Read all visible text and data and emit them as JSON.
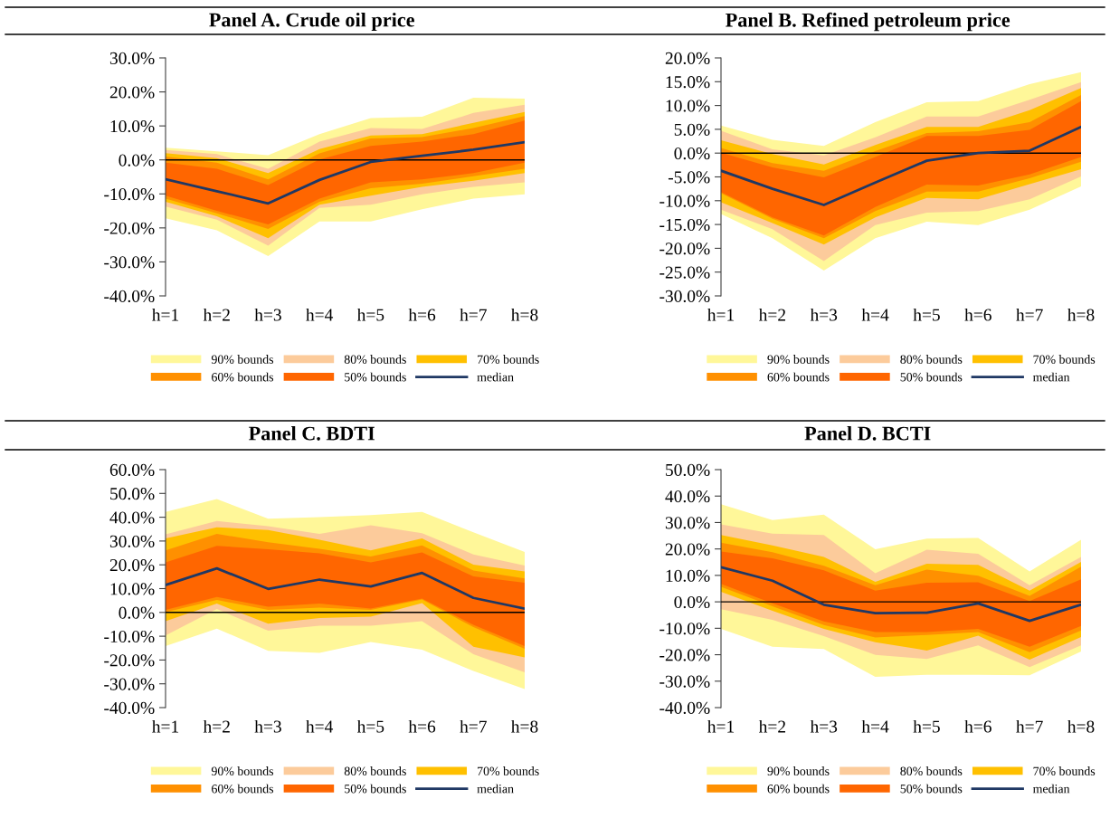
{
  "chart_data": [
    {
      "type": "area",
      "title": "Panel A. Crude oil price",
      "categories": [
        "h=1",
        "h=2",
        "h=3",
        "h=4",
        "h=5",
        "h=6",
        "h=7",
        "h=8"
      ],
      "ylim": [
        -40,
        30
      ],
      "yticks": [
        {
          "value": -40,
          "label": "-40.0%"
        },
        {
          "value": -30,
          "label": "-30.0%"
        },
        {
          "value": -20,
          "label": "-20.0%"
        },
        {
          "value": -10,
          "label": "-10.0%"
        },
        {
          "value": 0,
          "label": "0.0%"
        },
        {
          "value": 10,
          "label": "10.0%"
        },
        {
          "value": 20,
          "label": "20.0%"
        },
        {
          "value": 30,
          "label": "30.0%"
        }
      ],
      "legend": "bottom",
      "grid": false,
      "ref_lines": [
        {
          "axis": "y",
          "value": 0,
          "color": "#000000"
        }
      ],
      "series": [
        {
          "name": "90% bounds",
          "color": "#fff799",
          "values": [
            null,
            null,
            null,
            null,
            null,
            null,
            null,
            null
          ],
          "lower": [
            -17.2,
            -20.7,
            -28.3,
            -18.1,
            -18.1,
            -14.5,
            -11.4,
            -10.1
          ],
          "upper": [
            3.6,
            2.5,
            1.4,
            7.6,
            12.3,
            12.7,
            18.3,
            18.0
          ]
        },
        {
          "name": "80% bounds",
          "color": "#fccb9b",
          "values": [
            null,
            null,
            null,
            null,
            null,
            null,
            null,
            null
          ],
          "lower": [
            -13.7,
            -17.6,
            -25.2,
            -14.1,
            -13.2,
            -10.1,
            -7.9,
            -6.6
          ],
          "upper": [
            2.9,
            1.7,
            -2.6,
            5.4,
            9.4,
            9.1,
            13.8,
            16.2
          ]
        },
        {
          "name": "70% bounds",
          "color": "#ffc000",
          "values": [
            null,
            null,
            null,
            null,
            null,
            null,
            null,
            null
          ],
          "lower": [
            -12.3,
            -16.6,
            -23.0,
            -13.2,
            -10.5,
            -7.9,
            -6.1,
            -3.9
          ],
          "upper": [
            2.0,
            0.5,
            -3.9,
            3.2,
            7.2,
            7.6,
            10.9,
            14.1
          ]
        },
        {
          "name": "60% bounds",
          "color": "#ff9000",
          "values": [
            null,
            null,
            null,
            null,
            null,
            null,
            null,
            null
          ],
          "lower": [
            -11.4,
            -15.7,
            -20.3,
            -12.3,
            -8.3,
            -7.0,
            -4.8,
            -2.6
          ],
          "upper": [
            1.0,
            -0.8,
            -5.7,
            1.9,
            6.3,
            6.7,
            9.4,
            12.9
          ]
        },
        {
          "name": "50% bounds",
          "color": "#ff6600",
          "values": [
            null,
            null,
            null,
            null,
            null,
            null,
            null,
            null
          ],
          "lower": [
            -10.5,
            -15.0,
            -19.0,
            -11.4,
            -6.6,
            -5.7,
            -3.9,
            -0.8
          ],
          "upper": [
            -0.8,
            -2.6,
            -7.4,
            0.1,
            4.1,
            5.4,
            7.6,
            11.6
          ]
        },
        {
          "name": "median",
          "type": "line",
          "color": "#1f3864",
          "values": [
            -5.7,
            -9.2,
            -12.8,
            -5.9,
            -0.6,
            1.2,
            3.0,
            5.2
          ]
        }
      ]
    },
    {
      "type": "area",
      "title": "Panel B. Refined petroleum price",
      "categories": [
        "h=1",
        "h=2",
        "h=3",
        "h=4",
        "h=5",
        "h=6",
        "h=7",
        "h=8"
      ],
      "ylim": [
        -30,
        20
      ],
      "yticks": [
        {
          "value": -30,
          "label": "-30.0%"
        },
        {
          "value": -25,
          "label": "-25.0%"
        },
        {
          "value": -20,
          "label": "-20.0%"
        },
        {
          "value": -15,
          "label": "-15.0%"
        },
        {
          "value": -10,
          "label": "-10.0%"
        },
        {
          "value": -5,
          "label": "-5.0%"
        },
        {
          "value": 0,
          "label": "0.0%"
        },
        {
          "value": 5,
          "label": "5.0%"
        },
        {
          "value": 10,
          "label": "10.0%"
        },
        {
          "value": 15,
          "label": "15.0%"
        },
        {
          "value": 20,
          "label": "20.0%"
        }
      ],
      "legend": "bottom",
      "grid": false,
      "ref_lines": [
        {
          "axis": "y",
          "value": 0,
          "color": "#000000"
        }
      ],
      "series": [
        {
          "name": "90% bounds",
          "color": "#fff799",
          "values": [
            null,
            null,
            null,
            null,
            null,
            null,
            null,
            null
          ],
          "lower": [
            -12.8,
            -17.9,
            -24.7,
            -17.9,
            -14.4,
            -15.1,
            -11.9,
            -7.0
          ],
          "upper": [
            5.8,
            2.8,
            1.5,
            6.5,
            10.7,
            10.9,
            14.5,
            17.0
          ]
        },
        {
          "name": "80% bounds",
          "color": "#fccb9b",
          "values": [
            null,
            null,
            null,
            null,
            null,
            null,
            null,
            null
          ],
          "lower": [
            -11.9,
            -16.0,
            -22.7,
            -15.1,
            -12.5,
            -12.2,
            -9.7,
            -4.9
          ],
          "upper": [
            4.7,
            0.8,
            -0.5,
            3.3,
            7.7,
            7.7,
            11.2,
            14.9
          ]
        },
        {
          "name": "70% bounds",
          "color": "#ffc000",
          "values": [
            null,
            null,
            null,
            null,
            null,
            null,
            null,
            null
          ],
          "lower": [
            -10.3,
            -14.7,
            -19.2,
            -13.5,
            -9.4,
            -9.7,
            -6.5,
            -3.4
          ],
          "upper": [
            2.7,
            -0.2,
            -2.4,
            1.7,
            5.5,
            5.5,
            9.0,
            13.7
          ]
        },
        {
          "name": "60% bounds",
          "color": "#ff9000",
          "values": [
            null,
            null,
            null,
            null,
            null,
            null,
            null,
            null
          ],
          "lower": [
            -8.4,
            -13.8,
            -17.9,
            -12.2,
            -8.1,
            -8.1,
            -5.3,
            -1.8
          ],
          "upper": [
            1.1,
            -2.1,
            -3.7,
            0.4,
            4.2,
            4.6,
            6.5,
            12.2
          ]
        },
        {
          "name": "50% bounds",
          "color": "#ff6600",
          "values": [
            null,
            null,
            null,
            null,
            null,
            null,
            null,
            null
          ],
          "lower": [
            -8.2,
            -13.5,
            -17.3,
            -11.3,
            -6.6,
            -6.8,
            -4.5,
            -0.8
          ],
          "upper": [
            0.1,
            -3.0,
            -5.1,
            -0.8,
            3.6,
            3.6,
            4.9,
            10.9
          ]
        },
        {
          "name": "median",
          "type": "line",
          "color": "#1f3864",
          "values": [
            -3.7,
            -7.5,
            -10.9,
            -6.2,
            -1.6,
            0.0,
            0.5,
            5.5
          ]
        }
      ]
    },
    {
      "type": "area",
      "title": "Panel C. BDTI",
      "categories": [
        "h=1",
        "h=2",
        "h=3",
        "h=4",
        "h=5",
        "h=6",
        "h=7",
        "h=8"
      ],
      "ylim": [
        -40,
        60
      ],
      "yticks": [
        {
          "value": -40,
          "label": "-40.0%"
        },
        {
          "value": -30,
          "label": "-30.0%"
        },
        {
          "value": -20,
          "label": "-20.0%"
        },
        {
          "value": -10,
          "label": "-10.0%"
        },
        {
          "value": 0,
          "label": "0.0%"
        },
        {
          "value": 10,
          "label": "10.0%"
        },
        {
          "value": 20,
          "label": "20.0%"
        },
        {
          "value": 30,
          "label": "30.0%"
        },
        {
          "value": 40,
          "label": "40.0%"
        },
        {
          "value": 50,
          "label": "50.0%"
        },
        {
          "value": 60,
          "label": "60.0%"
        }
      ],
      "legend": "bottom",
      "grid": false,
      "ref_lines": [
        {
          "axis": "y",
          "value": 0,
          "color": "#000000"
        }
      ],
      "series": [
        {
          "name": "90% bounds",
          "color": "#fff799",
          "values": [
            null,
            null,
            null,
            null,
            null,
            null,
            null,
            null
          ],
          "lower": [
            -14.1,
            -6.8,
            -16.1,
            -17.0,
            -12.4,
            -15.7,
            -24.6,
            -32.2
          ],
          "upper": [
            42.2,
            47.6,
            39.4,
            40.0,
            40.9,
            42.2,
            33.7,
            25.4
          ]
        },
        {
          "name": "80% bounds",
          "color": "#fccb9b",
          "values": [
            null,
            null,
            null,
            null,
            null,
            null,
            null,
            null
          ],
          "lower": [
            -9.7,
            1.4,
            -7.7,
            -5.6,
            -5.6,
            -3.7,
            -17.6,
            -25.2
          ],
          "upper": [
            32.8,
            38.4,
            36.2,
            33.0,
            36.6,
            33.3,
            24.4,
            19.7
          ]
        },
        {
          "name": "70% bounds",
          "color": "#ffc000",
          "values": [
            null,
            null,
            null,
            null,
            null,
            null,
            null,
            null
          ],
          "lower": [
            -3.7,
            3.7,
            -4.7,
            -2.4,
            -1.8,
            3.9,
            -14.4,
            -18.9
          ],
          "upper": [
            31.1,
            35.8,
            34.6,
            30.5,
            26.1,
            31.1,
            20.1,
            17.2
          ]
        },
        {
          "name": "60% bounds",
          "color": "#ff9000",
          "values": [
            null,
            null,
            null,
            null,
            null,
            null,
            null,
            null
          ],
          "lower": [
            0.1,
            5.2,
            1.1,
            2.0,
            1.1,
            5.4,
            -6.2,
            -15.3
          ],
          "upper": [
            26.1,
            33.0,
            29.5,
            26.7,
            23.5,
            28.2,
            17.6,
            14.3
          ]
        },
        {
          "name": "50% bounds",
          "color": "#ff6600",
          "values": [
            null,
            null,
            null,
            null,
            null,
            null,
            null,
            null
          ],
          "lower": [
            1.1,
            6.5,
            2.4,
            3.7,
            1.6,
            5.8,
            -5.2,
            -14.1
          ],
          "upper": [
            21.0,
            28.0,
            26.5,
            24.8,
            21.0,
            25.2,
            15.1,
            12.5
          ]
        },
        {
          "name": "median",
          "type": "line",
          "color": "#1f3864",
          "values": [
            11.5,
            18.5,
            9.9,
            13.8,
            10.9,
            16.6,
            6.1,
            1.6
          ]
        }
      ]
    },
    {
      "type": "area",
      "title": "Panel D. BCTI",
      "categories": [
        "h=1",
        "h=2",
        "h=3",
        "h=4",
        "h=5",
        "h=6",
        "h=7",
        "h=8"
      ],
      "ylim": [
        -40,
        50
      ],
      "yticks": [
        {
          "value": -40,
          "label": "-40.0%"
        },
        {
          "value": -30,
          "label": "-30.0%"
        },
        {
          "value": -20,
          "label": "-20.0%"
        },
        {
          "value": -10,
          "label": "-10.0%"
        },
        {
          "value": 0,
          "label": "0.0%"
        },
        {
          "value": 10,
          "label": "10.0%"
        },
        {
          "value": 20,
          "label": "20.0%"
        },
        {
          "value": 30,
          "label": "30.0%"
        },
        {
          "value": 40,
          "label": "40.0%"
        },
        {
          "value": 50,
          "label": "50.0%"
        }
      ],
      "legend": "bottom",
      "grid": false,
      "ref_lines": [
        {
          "axis": "y",
          "value": 0,
          "color": "#000000"
        }
      ],
      "series": [
        {
          "name": "90% bounds",
          "color": "#fff799",
          "values": [
            null,
            null,
            null,
            null,
            null,
            null,
            null,
            null
          ],
          "lower": [
            -10.2,
            -17.0,
            -17.8,
            -28.4,
            -27.6,
            -27.6,
            -27.8,
            -18.8
          ],
          "upper": [
            36.9,
            30.9,
            33.0,
            19.9,
            23.9,
            24.2,
            11.5,
            23.5
          ]
        },
        {
          "name": "80% bounds",
          "color": "#fccb9b",
          "values": [
            null,
            null,
            null,
            null,
            null,
            null,
            null,
            null
          ],
          "lower": [
            -2.8,
            -6.8,
            -13.0,
            -20.1,
            -21.6,
            -16.5,
            -24.7,
            -16.5
          ],
          "upper": [
            29.3,
            25.8,
            25.3,
            10.8,
            19.7,
            18.2,
            6.3,
            17.0
          ]
        },
        {
          "name": "70% bounds",
          "color": "#ffc000",
          "values": [
            null,
            null,
            null,
            null,
            null,
            null,
            null,
            null
          ],
          "lower": [
            3.8,
            -3.4,
            -10.2,
            -15.3,
            -18.4,
            -12.8,
            -21.9,
            -13.3
          ],
          "upper": [
            25.3,
            21.3,
            17.0,
            7.6,
            14.4,
            14.0,
            4.2,
            15.1
          ]
        },
        {
          "name": "60% bounds",
          "color": "#ff9000",
          "values": [
            null,
            null,
            null,
            null,
            null,
            null,
            null,
            null
          ],
          "lower": [
            5.7,
            -1.7,
            -8.8,
            -13.5,
            -12.5,
            -11.4,
            -19.0,
            -10.8
          ],
          "upper": [
            22.4,
            18.8,
            13.6,
            6.3,
            12.2,
            9.9,
            2.3,
            13.3
          ]
        },
        {
          "name": "50% bounds",
          "color": "#ff6600",
          "values": [
            null,
            null,
            null,
            null,
            null,
            null,
            null,
            null
          ],
          "lower": [
            6.8,
            -0.6,
            -7.4,
            -11.4,
            -11.4,
            -10.2,
            -17.0,
            -9.1
          ],
          "upper": [
            19.0,
            16.5,
            11.9,
            4.2,
            7.2,
            7.4,
            0.3,
            8.5
          ]
        },
        {
          "name": "median",
          "type": "line",
          "color": "#1f3864",
          "values": [
            13.1,
            8.0,
            -1.1,
            -4.3,
            -4.1,
            -0.6,
            -7.2,
            -1.1
          ]
        }
      ]
    }
  ]
}
